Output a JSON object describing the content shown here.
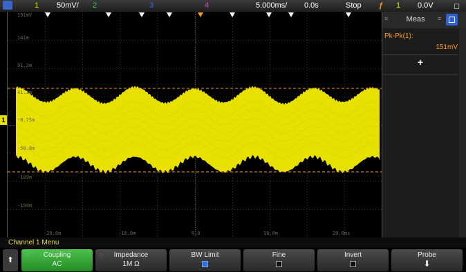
{
  "topbar": {
    "ch1_num": "1",
    "ch1_scale": "50mV/",
    "ch2_num": "2",
    "ch3_num": "3",
    "ch4_num": "4",
    "timebase": "5.000ms/",
    "delay": "0.0s",
    "run_state": "Stop",
    "trigger_source": "1",
    "trigger_level": "0.0V"
  },
  "graticule": {
    "y_labels": [
      "191mV",
      "141m",
      "91.2m",
      "41.2m",
      "-8.75m",
      "-58.8m",
      "-109m",
      "-159m"
    ],
    "x_labels": [
      "-20.0m",
      "-10.0m",
      "0.0",
      "10.0m",
      "20.0ms"
    ],
    "ground_marker": "1"
  },
  "sidebar": {
    "tab_label": "Meas",
    "measurement_label": "Pk-Pk(1):",
    "measurement_value": "151mV",
    "add_label": "+"
  },
  "menu": {
    "title": "Channel 1 Menu",
    "softkeys": [
      {
        "label": "Coupling",
        "value": "AC"
      },
      {
        "label": "Impedance",
        "value": "1M Ω"
      },
      {
        "label": "BW Limit",
        "value": ""
      },
      {
        "label": "Fine",
        "value": ""
      },
      {
        "label": "Invert",
        "value": ""
      },
      {
        "label": "Probe",
        "value": ""
      }
    ]
  },
  "colors": {
    "channel1": "#e8e000",
    "channel2": "#3cd23c",
    "channel3": "#3c64ff",
    "channel4": "#e040e0",
    "trigger": "#ff9a1a",
    "measurement": "#ff9a1a",
    "softkey_active": "#2ea12e"
  }
}
